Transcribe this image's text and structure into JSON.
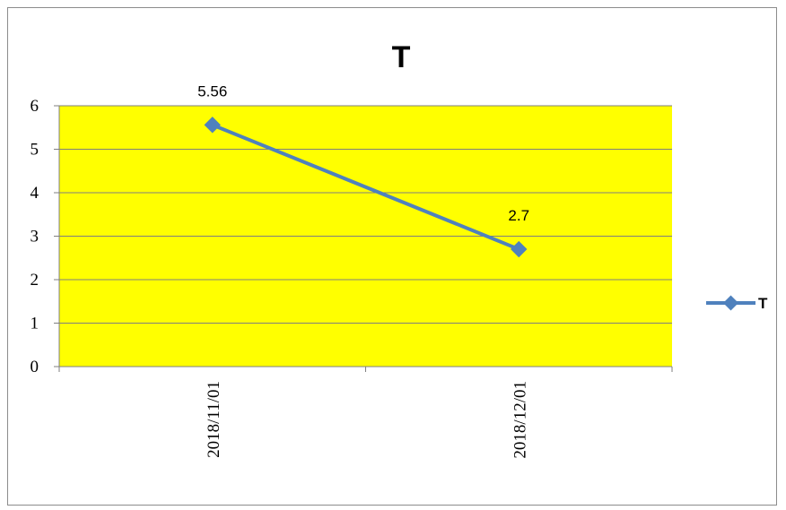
{
  "chart_data": {
    "type": "line",
    "title": "T",
    "xlabel": "",
    "ylabel": "",
    "categories": [
      "2018/11/01",
      "2018/12/01"
    ],
    "series": [
      {
        "name": "T",
        "values": [
          5.56,
          2.7
        ],
        "data_labels": [
          "5.56",
          "2.7"
        ]
      }
    ],
    "ylim": [
      0,
      6
    ],
    "yticks": [
      "0",
      "1",
      "2",
      "3",
      "4",
      "5",
      "6"
    ],
    "grid": true,
    "legend_position": "right",
    "plot_background": "#ffff00",
    "line_color": "#4f81bd",
    "gridline_color": "#7f7f7f"
  }
}
